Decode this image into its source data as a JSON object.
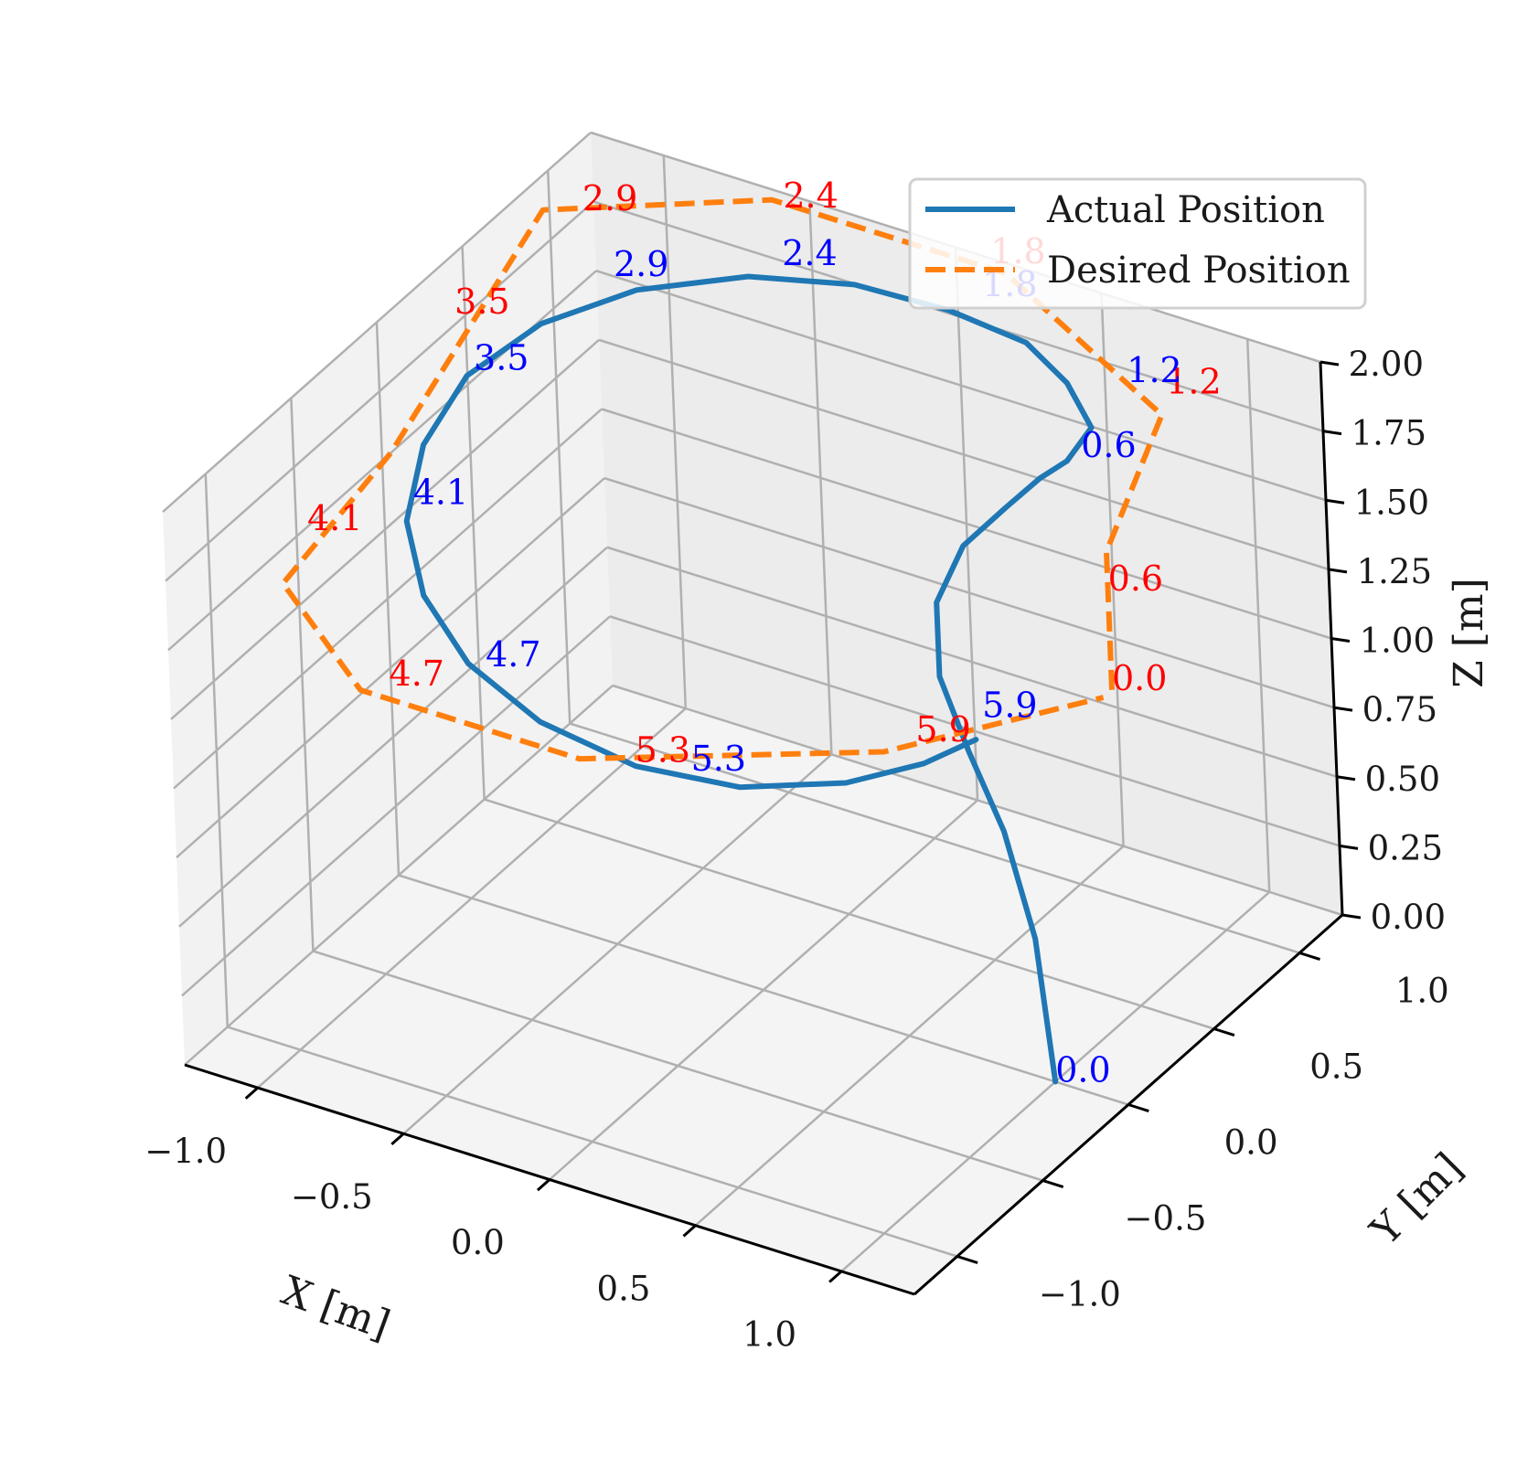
{
  "chart_data": {
    "type": "line3d",
    "title": "",
    "xlabel": "X [m]",
    "ylabel": "Y [m]",
    "zlabel": "Z [m]",
    "xlim": [
      -1.25,
      1.25
    ],
    "ylim": [
      -1.25,
      1.25
    ],
    "zlim": [
      0.0,
      2.0
    ],
    "x_ticks": [
      -1.0,
      -0.5,
      0.0,
      0.5,
      1.0
    ],
    "x_tick_labels": [
      "−1.0",
      "−0.5",
      "0.0",
      "0.5",
      "1.0"
    ],
    "y_ticks": [
      -1.0,
      -0.5,
      0.0,
      0.5,
      1.0
    ],
    "y_tick_labels": [
      "−1.0",
      "−0.5",
      "0.0",
      "0.5",
      "1.0"
    ],
    "z_ticks": [
      0.0,
      0.25,
      0.5,
      0.75,
      1.0,
      1.25,
      1.5,
      1.75,
      2.0
    ],
    "z_tick_labels": [
      "0.00",
      "0.25",
      "0.50",
      "0.75",
      "1.00",
      "1.25",
      "1.50",
      "1.75",
      "2.00"
    ],
    "grid": true,
    "legend_position": "top-right",
    "colors": {
      "actual": "#1f77b4",
      "desired": "#ff7f0e",
      "actual_labels": "#0000ff",
      "desired_labels": "#ff0000",
      "grid": "#b0b0b0",
      "pane_back": "#ececec",
      "pane_left": "#f2f2f2",
      "pane_floor": "#f4f4f4",
      "axis_line": "#000000"
    },
    "series": [
      {
        "name": "Actual Position",
        "style": "solid",
        "x": [
          1.0,
          0.95,
          0.85,
          0.72,
          0.58,
          0.5,
          0.52,
          0.6,
          0.66,
          0.72,
          0.76,
          0.62,
          0.41,
          0.12,
          -0.19,
          -0.49,
          -0.75,
          -0.92,
          -1.0,
          -0.97,
          -0.86,
          -0.67,
          -0.42,
          -0.13,
          0.19,
          0.48,
          0.72,
          0.87,
          0.95
        ],
        "y": [
          0.0,
          0.0,
          0.01,
          0.04,
          0.12,
          0.25,
          0.38,
          0.5,
          0.6,
          0.66,
          0.74,
          0.84,
          0.96,
          1.0,
          0.98,
          0.87,
          0.66,
          0.39,
          0.09,
          -0.22,
          -0.51,
          -0.74,
          -0.91,
          -0.99,
          -0.98,
          -0.87,
          -0.66,
          -0.46,
          -0.29
        ],
        "z": [
          0.0,
          0.5,
          0.85,
          1.08,
          1.26,
          1.43,
          1.57,
          1.67,
          1.74,
          1.79,
          1.88,
          1.94,
          1.95,
          1.95,
          1.95,
          1.94,
          1.92,
          1.89,
          1.84,
          1.77,
          1.69,
          1.61,
          1.54,
          1.47,
          1.41,
          1.37,
          1.35,
          1.36,
          1.38
        ]
      },
      {
        "name": "Desired Position",
        "style": "dashed",
        "x": [
          1.25,
          1.25,
          1.0,
          0.2,
          -0.6,
          -1.15,
          -1.25,
          -1.15,
          -0.65,
          0.1,
          0.85,
          1.25
        ],
        "y": [
          0.0,
          0.0,
          0.75,
          1.2,
          1.2,
          0.8,
          0.05,
          -0.75,
          -1.15,
          -1.15,
          -0.65,
          -0.05
        ],
        "z": [
          1.5,
          2.0,
          2.0,
          2.0,
          2.0,
          2.0,
          1.5,
          1.5,
          1.5,
          1.5,
          1.5,
          1.5
        ]
      }
    ],
    "annotations_actual": [
      {
        "text": "0.0",
        "x": 1.0,
        "y": 0.0,
        "z": 0.0
      },
      {
        "text": "0.6",
        "x": 0.72,
        "y": 0.74,
        "z": 1.76
      },
      {
        "text": "1.2",
        "x": 0.76,
        "y": 0.95,
        "z": 1.93
      },
      {
        "text": "1.8",
        "x": 0.19,
        "y": 1.08,
        "z": 1.98
      },
      {
        "text": "2.4",
        "x": -0.42,
        "y": 0.95,
        "z": 1.96
      },
      {
        "text": "2.9",
        "x": -0.84,
        "y": 0.68,
        "z": 1.93
      },
      {
        "text": "3.5",
        "x": -1.0,
        "y": 0.13,
        "z": 1.84
      },
      {
        "text": "4.1",
        "x": -0.86,
        "y": -0.47,
        "z": 1.73
      },
      {
        "text": "4.7",
        "x": -0.36,
        "y": -0.91,
        "z": 1.55
      },
      {
        "text": "5.3",
        "x": 0.35,
        "y": -0.93,
        "z": 1.42
      },
      {
        "text": "5.9",
        "x": 0.95,
        "y": -0.25,
        "z": 1.44
      }
    ],
    "annotations_desired": [
      {
        "text": "0.0",
        "x": 1.25,
        "y": 0.0,
        "z": 1.5
      },
      {
        "text": "0.6",
        "x": 1.25,
        "y": 0.0,
        "z": 1.86
      },
      {
        "text": "1.2",
        "x": 0.95,
        "y": 0.86,
        "z": 2.0
      },
      {
        "text": "1.8",
        "x": 0.15,
        "y": 1.2,
        "z": 2.02
      },
      {
        "text": "2.4",
        "x": -0.55,
        "y": 1.18,
        "z": 2.0
      },
      {
        "text": "2.9",
        "x": -1.05,
        "y": 0.86,
        "z": 2.0
      },
      {
        "text": "3.5",
        "x": -1.2,
        "y": 0.36,
        "z": 1.85
      },
      {
        "text": "4.1",
        "x": -1.2,
        "y": -0.52,
        "z": 1.55
      },
      {
        "text": "4.7",
        "x": -0.55,
        "y": -1.15,
        "z": 1.55
      },
      {
        "text": "5.3",
        "x": 0.25,
        "y": -1.08,
        "z": 1.5
      },
      {
        "text": "5.9",
        "x": 0.9,
        "y": -0.55,
        "z": 1.5
      }
    ]
  },
  "legend": {
    "entries": [
      {
        "label": "Actual Position",
        "style": "solid"
      },
      {
        "label": "Desired Position",
        "style": "dashed"
      }
    ]
  }
}
